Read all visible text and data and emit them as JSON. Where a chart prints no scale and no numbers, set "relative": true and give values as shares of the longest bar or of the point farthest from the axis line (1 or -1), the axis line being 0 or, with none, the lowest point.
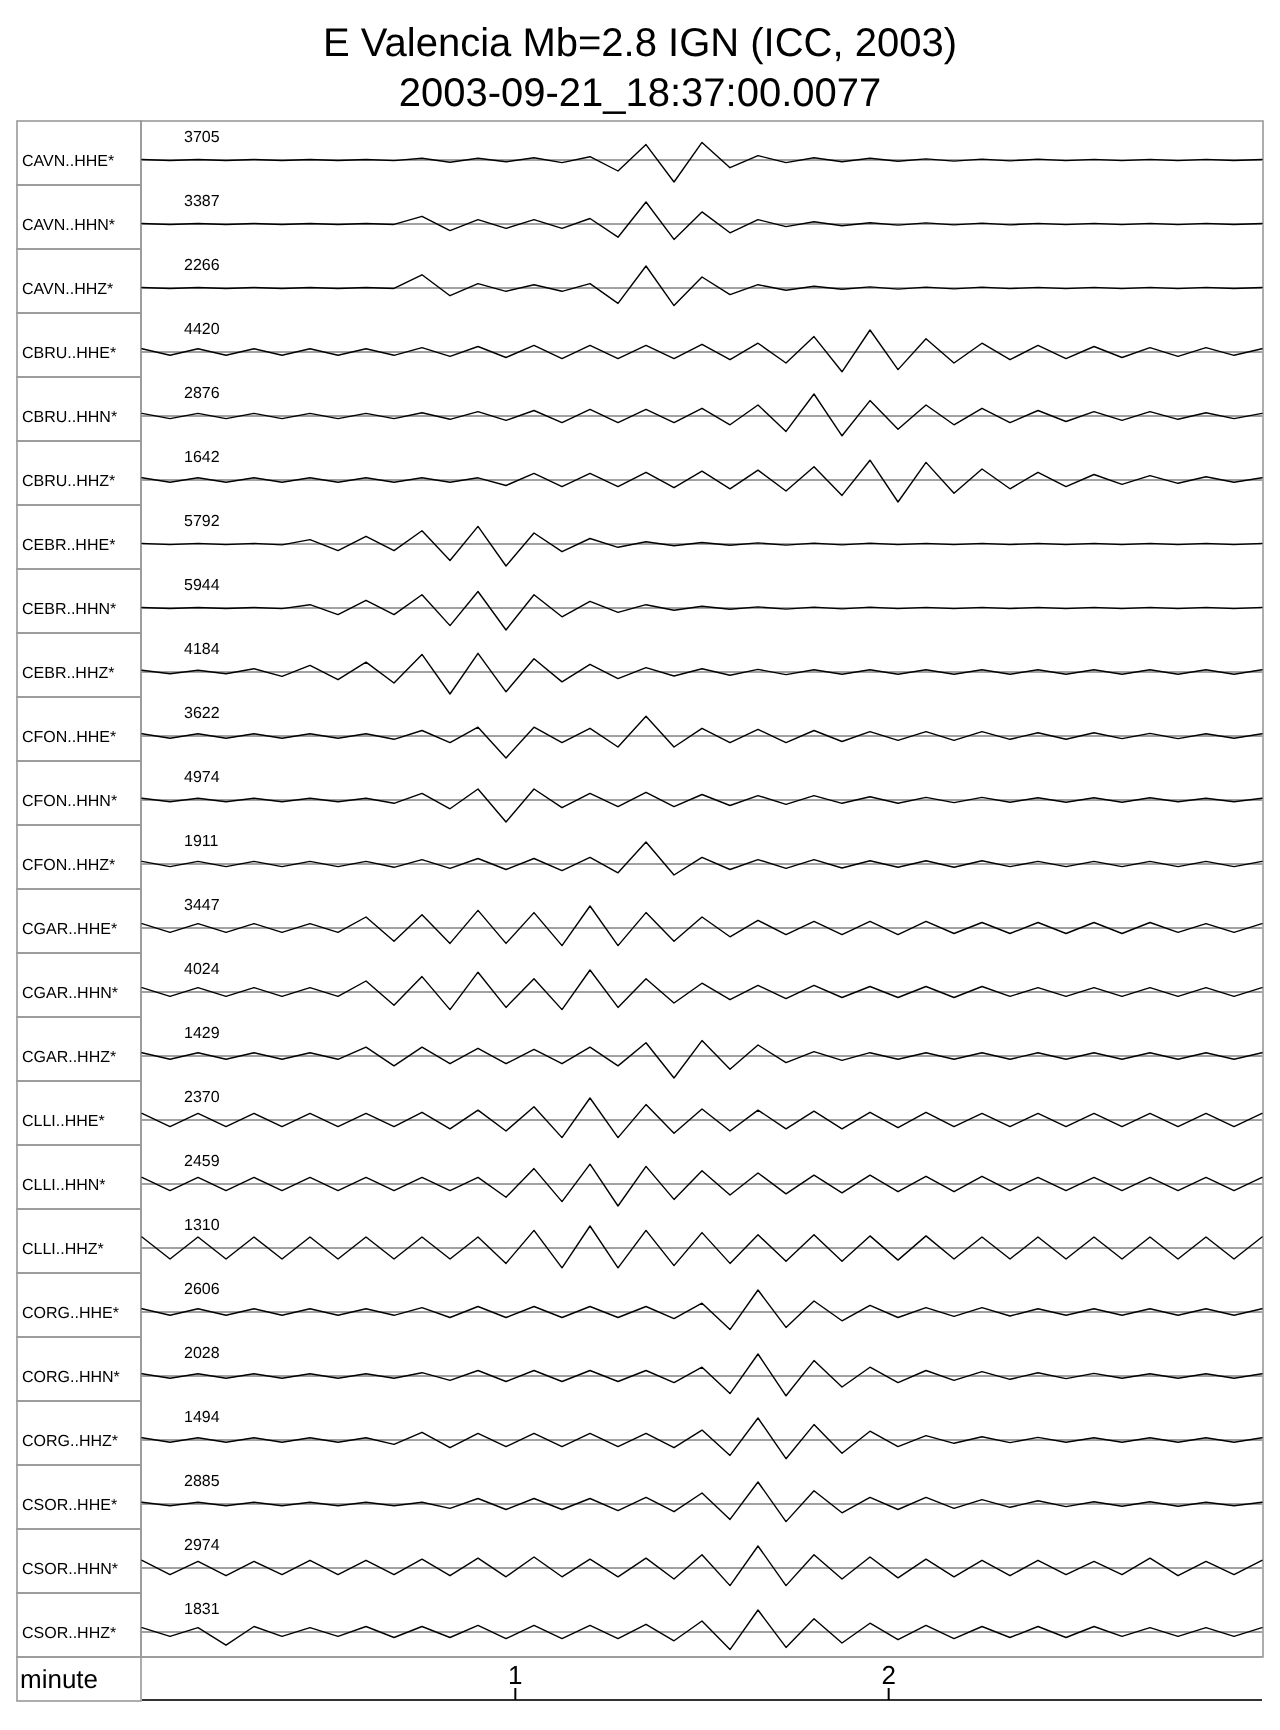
{
  "chart_data": [
    {
      "type": "line",
      "title": "E Valencia Mb=2.8 IGN (ICC, 2003)",
      "subtitle": "2003-09-21_18:37:00.0077",
      "ylabel": "CAVN..HHE*",
      "annotations": [
        "3705"
      ],
      "relative": true,
      "color": "#000000",
      "xlim": [
        0,
        3
      ],
      "tick_labels": false,
      "x": [
        0,
        0.075,
        0.15,
        0.225,
        0.3,
        0.375,
        0.45,
        0.525,
        0.6,
        0.675,
        0.75,
        0.825,
        0.9,
        0.975,
        1.05,
        1.125,
        1.2,
        1.275,
        1.35,
        1.425,
        1.5,
        1.575,
        1.65,
        1.725,
        1.8,
        1.875,
        1.95,
        2.025,
        2.1,
        2.175,
        2.25,
        2.325,
        2.4,
        2.475,
        2.55,
        2.625,
        2.7,
        2.775,
        2.85,
        2.925,
        3
      ],
      "values": [
        0.02,
        -0.02,
        0.02,
        -0.02,
        0.02,
        -0.02,
        0.02,
        -0.02,
        0.02,
        -0.03,
        0.08,
        -0.1,
        0.08,
        -0.08,
        0.1,
        -0.12,
        0.15,
        -0.5,
        0.7,
        -1,
        0.8,
        -0.35,
        0.2,
        -0.12,
        0.1,
        -0.08,
        0.08,
        -0.06,
        0.05,
        -0.05,
        0.04,
        -0.04,
        0.04,
        -0.03,
        0.03,
        -0.03,
        0.03,
        -0.03,
        0.03,
        -0.02,
        0.02
      ]
    },
    {
      "type": "line",
      "ylabel": "CAVN..HHN*",
      "annotations": [
        "3387"
      ],
      "relative": true,
      "color": "#000000",
      "xlim": [
        0,
        3
      ],
      "tick_labels": false,
      "x": [
        0,
        0.075,
        0.15,
        0.225,
        0.3,
        0.375,
        0.45,
        0.525,
        0.6,
        0.675,
        0.75,
        0.825,
        0.9,
        0.975,
        1.05,
        1.125,
        1.2,
        1.275,
        1.35,
        1.425,
        1.5,
        1.575,
        1.65,
        1.725,
        1.8,
        1.875,
        1.95,
        2.025,
        2.1,
        2.175,
        2.25,
        2.325,
        2.4,
        2.475,
        2.55,
        2.625,
        2.7,
        2.775,
        2.85,
        2.925,
        3
      ],
      "values": [
        0.02,
        -0.02,
        0.02,
        -0.02,
        0.02,
        -0.02,
        0.02,
        -0.02,
        0.02,
        -0.02,
        0.35,
        -0.3,
        0.2,
        -0.2,
        0.2,
        -0.2,
        0.25,
        -0.6,
        1,
        -0.7,
        0.55,
        -0.4,
        0.2,
        -0.12,
        0.1,
        -0.08,
        0.06,
        -0.05,
        0.05,
        -0.04,
        0.04,
        -0.04,
        0.03,
        -0.03,
        0.03,
        -0.03,
        0.03,
        -0.03,
        0.03,
        -0.02,
        0.02
      ]
    },
    {
      "type": "line",
      "ylabel": "CAVN..HHZ*",
      "annotations": [
        "2266"
      ],
      "relative": true,
      "color": "#000000",
      "xlim": [
        0,
        3
      ],
      "tick_labels": false,
      "x": [
        0,
        0.075,
        0.15,
        0.225,
        0.3,
        0.375,
        0.45,
        0.525,
        0.6,
        0.675,
        0.75,
        0.825,
        0.9,
        0.975,
        1.05,
        1.125,
        1.2,
        1.275,
        1.35,
        1.425,
        1.5,
        1.575,
        1.65,
        1.725,
        1.8,
        1.875,
        1.95,
        2.025,
        2.1,
        2.175,
        2.25,
        2.325,
        2.4,
        2.475,
        2.55,
        2.625,
        2.7,
        2.775,
        2.85,
        2.925,
        3
      ],
      "values": [
        0.02,
        -0.02,
        0.02,
        -0.02,
        0.02,
        -0.02,
        0.02,
        -0.02,
        0.02,
        -0.02,
        0.6,
        -0.35,
        0.2,
        -0.15,
        0.15,
        -0.15,
        0.2,
        -0.7,
        1,
        -0.8,
        0.5,
        -0.3,
        0.15,
        -0.1,
        0.08,
        -0.06,
        0.05,
        -0.05,
        0.04,
        -0.04,
        0.04,
        -0.03,
        0.03,
        -0.03,
        0.03,
        -0.03,
        0.03,
        -0.03,
        0.03,
        -0.02,
        0.02
      ]
    },
    {
      "type": "line",
      "ylabel": "CBRU..HHE*",
      "annotations": [
        "4420"
      ],
      "relative": true,
      "color": "#000000",
      "xlim": [
        0,
        3
      ],
      "tick_labels": false,
      "x": [
        0,
        0.075,
        0.15,
        0.225,
        0.3,
        0.375,
        0.45,
        0.525,
        0.6,
        0.675,
        0.75,
        0.825,
        0.9,
        0.975,
        1.05,
        1.125,
        1.2,
        1.275,
        1.35,
        1.425,
        1.5,
        1.575,
        1.65,
        1.725,
        1.8,
        1.875,
        1.95,
        2.025,
        2.1,
        2.175,
        2.25,
        2.325,
        2.4,
        2.475,
        2.55,
        2.625,
        2.7,
        2.775,
        2.85,
        2.925,
        3
      ],
      "values": [
        0.15,
        -0.15,
        0.15,
        -0.15,
        0.15,
        -0.15,
        0.15,
        -0.15,
        0.15,
        -0.15,
        0.2,
        -0.2,
        0.25,
        -0.25,
        0.3,
        -0.3,
        0.3,
        -0.3,
        0.3,
        -0.3,
        0.35,
        -0.35,
        0.4,
        -0.5,
        0.7,
        -0.9,
        1,
        -0.8,
        0.6,
        -0.5,
        0.4,
        -0.35,
        0.3,
        -0.3,
        0.25,
        -0.25,
        0.2,
        -0.2,
        0.2,
        -0.15,
        0.15
      ]
    },
    {
      "type": "line",
      "ylabel": "CBRU..HHN*",
      "annotations": [
        "2876"
      ],
      "relative": true,
      "color": "#000000",
      "xlim": [
        0,
        3
      ],
      "tick_labels": false,
      "x": [
        0,
        0.075,
        0.15,
        0.225,
        0.3,
        0.375,
        0.45,
        0.525,
        0.6,
        0.675,
        0.75,
        0.825,
        0.9,
        0.975,
        1.05,
        1.125,
        1.2,
        1.275,
        1.35,
        1.425,
        1.5,
        1.575,
        1.65,
        1.725,
        1.8,
        1.875,
        1.95,
        2.025,
        2.1,
        2.175,
        2.25,
        2.325,
        2.4,
        2.475,
        2.55,
        2.625,
        2.7,
        2.775,
        2.85,
        2.925,
        3
      ],
      "values": [
        0.12,
        -0.12,
        0.12,
        -0.12,
        0.12,
        -0.12,
        0.12,
        -0.12,
        0.12,
        -0.12,
        0.15,
        -0.15,
        0.2,
        -0.2,
        0.25,
        -0.3,
        0.3,
        -0.3,
        0.3,
        -0.3,
        0.35,
        -0.4,
        0.5,
        -0.7,
        1,
        -0.9,
        0.7,
        -0.6,
        0.5,
        -0.4,
        0.35,
        -0.3,
        0.25,
        -0.25,
        0.2,
        -0.2,
        0.2,
        -0.15,
        0.15,
        -0.12,
        0.12
      ]
    },
    {
      "type": "line",
      "ylabel": "CBRU..HHZ*",
      "annotations": [
        "1642"
      ],
      "relative": true,
      "color": "#000000",
      "xlim": [
        0,
        3
      ],
      "tick_labels": false,
      "x": [
        0,
        0.075,
        0.15,
        0.225,
        0.3,
        0.375,
        0.45,
        0.525,
        0.6,
        0.675,
        0.75,
        0.825,
        0.9,
        0.975,
        1.05,
        1.125,
        1.2,
        1.275,
        1.35,
        1.425,
        1.5,
        1.575,
        1.65,
        1.725,
        1.8,
        1.875,
        1.95,
        2.025,
        2.1,
        2.175,
        2.25,
        2.325,
        2.4,
        2.475,
        2.55,
        2.625,
        2.7,
        2.775,
        2.85,
        2.925,
        3
      ],
      "values": [
        0.1,
        -0.1,
        0.1,
        -0.1,
        0.1,
        -0.1,
        0.1,
        -0.1,
        0.1,
        -0.1,
        0.1,
        -0.1,
        0.1,
        -0.25,
        0.3,
        -0.3,
        0.3,
        -0.3,
        0.35,
        -0.35,
        0.4,
        -0.4,
        0.45,
        -0.5,
        0.6,
        -0.7,
        0.9,
        -1,
        0.8,
        -0.6,
        0.5,
        -0.4,
        0.35,
        -0.3,
        0.25,
        -0.2,
        0.2,
        -0.15,
        0.15,
        -0.1,
        0.1
      ]
    },
    {
      "type": "line",
      "ylabel": "CEBR..HHE*",
      "annotations": [
        "5792"
      ],
      "relative": true,
      "color": "#000000",
      "xlim": [
        0,
        3
      ],
      "tick_labels": false,
      "x": [
        0,
        0.075,
        0.15,
        0.225,
        0.3,
        0.375,
        0.45,
        0.525,
        0.6,
        0.675,
        0.75,
        0.825,
        0.9,
        0.975,
        1.05,
        1.125,
        1.2,
        1.275,
        1.35,
        1.425,
        1.5,
        1.575,
        1.65,
        1.725,
        1.8,
        1.875,
        1.95,
        2.025,
        2.1,
        2.175,
        2.25,
        2.325,
        2.4,
        2.475,
        2.55,
        2.625,
        2.7,
        2.775,
        2.85,
        2.925,
        3
      ],
      "values": [
        0.03,
        -0.03,
        0.03,
        -0.03,
        0.03,
        -0.04,
        0.2,
        -0.3,
        0.35,
        -0.3,
        0.6,
        -0.75,
        0.8,
        -1,
        0.5,
        -0.35,
        0.25,
        -0.15,
        0.1,
        -0.08,
        0.07,
        -0.06,
        0.05,
        -0.05,
        0.04,
        -0.04,
        0.04,
        -0.03,
        0.03,
        -0.03,
        0.03,
        -0.03,
        0.03,
        -0.03,
        0.03,
        -0.03,
        0.03,
        -0.03,
        0.03,
        -0.03,
        0.03
      ]
    },
    {
      "type": "line",
      "ylabel": "CEBR..HHN*",
      "annotations": [
        "5944"
      ],
      "relative": true,
      "color": "#000000",
      "xlim": [
        0,
        3
      ],
      "tick_labels": false,
      "x": [
        0,
        0.075,
        0.15,
        0.225,
        0.3,
        0.375,
        0.45,
        0.525,
        0.6,
        0.675,
        0.75,
        0.825,
        0.9,
        0.975,
        1.05,
        1.125,
        1.2,
        1.275,
        1.35,
        1.425,
        1.5,
        1.575,
        1.65,
        1.725,
        1.8,
        1.875,
        1.95,
        2.025,
        2.1,
        2.175,
        2.25,
        2.325,
        2.4,
        2.475,
        2.55,
        2.625,
        2.7,
        2.775,
        2.85,
        2.925,
        3
      ],
      "values": [
        0.02,
        -0.02,
        0.02,
        -0.02,
        0.02,
        -0.03,
        0.15,
        -0.3,
        0.35,
        -0.3,
        0.6,
        -0.8,
        0.75,
        -1,
        0.6,
        -0.4,
        0.3,
        -0.2,
        0.15,
        -0.1,
        0.08,
        -0.06,
        0.05,
        -0.05,
        0.04,
        -0.04,
        0.04,
        -0.03,
        0.03,
        -0.03,
        0.03,
        -0.03,
        0.03,
        -0.03,
        0.03,
        -0.03,
        0.03,
        -0.03,
        0.03,
        -0.03,
        0.03
      ]
    },
    {
      "type": "line",
      "ylabel": "CEBR..HHZ*",
      "annotations": [
        "4184"
      ],
      "relative": true,
      "color": "#000000",
      "xlim": [
        0,
        3
      ],
      "tick_labels": false,
      "x": [
        0,
        0.075,
        0.15,
        0.225,
        0.3,
        0.375,
        0.45,
        0.525,
        0.6,
        0.675,
        0.75,
        0.825,
        0.9,
        0.975,
        1.05,
        1.125,
        1.2,
        1.275,
        1.35,
        1.425,
        1.5,
        1.575,
        1.65,
        1.725,
        1.8,
        1.875,
        1.95,
        2.025,
        2.1,
        2.175,
        2.25,
        2.325,
        2.4,
        2.475,
        2.55,
        2.625,
        2.7,
        2.775,
        2.85,
        2.925,
        3
      ],
      "values": [
        0.08,
        -0.08,
        0.08,
        -0.08,
        0.15,
        -0.2,
        0.3,
        -0.35,
        0.45,
        -0.5,
        0.8,
        -1,
        0.85,
        -0.9,
        0.6,
        -0.45,
        0.35,
        -0.3,
        0.2,
        -0.18,
        0.15,
        -0.15,
        0.12,
        -0.12,
        0.1,
        -0.1,
        0.1,
        -0.1,
        0.1,
        -0.1,
        0.1,
        -0.1,
        0.1,
        -0.1,
        0.1,
        -0.1,
        0.1,
        -0.1,
        0.1,
        -0.1,
        0.1
      ]
    },
    {
      "type": "line",
      "ylabel": "CFON..HHE*",
      "annotations": [
        "3622"
      ],
      "relative": true,
      "color": "#000000",
      "xlim": [
        0,
        3
      ],
      "tick_labels": false,
      "x": [
        0,
        0.075,
        0.15,
        0.225,
        0.3,
        0.375,
        0.45,
        0.525,
        0.6,
        0.675,
        0.75,
        0.825,
        0.9,
        0.975,
        1.05,
        1.125,
        1.2,
        1.275,
        1.35,
        1.425,
        1.5,
        1.575,
        1.65,
        1.725,
        1.8,
        1.875,
        1.95,
        2.025,
        2.1,
        2.175,
        2.25,
        2.325,
        2.4,
        2.475,
        2.55,
        2.625,
        2.7,
        2.775,
        2.85,
        2.925,
        3
      ],
      "values": [
        0.1,
        -0.1,
        0.1,
        -0.1,
        0.1,
        -0.1,
        0.1,
        -0.1,
        0.1,
        -0.15,
        0.25,
        -0.3,
        0.4,
        -1,
        0.4,
        -0.3,
        0.35,
        -0.5,
        0.9,
        -0.5,
        0.35,
        -0.3,
        0.3,
        -0.3,
        0.25,
        -0.25,
        0.2,
        -0.2,
        0.2,
        -0.2,
        0.2,
        -0.15,
        0.15,
        -0.15,
        0.15,
        -0.12,
        0.12,
        -0.12,
        0.1,
        -0.1,
        0.1
      ]
    },
    {
      "type": "line",
      "ylabel": "CFON..HHN*",
      "annotations": [
        "4974"
      ],
      "relative": true,
      "color": "#000000",
      "xlim": [
        0,
        3
      ],
      "tick_labels": false,
      "x": [
        0,
        0.075,
        0.15,
        0.225,
        0.3,
        0.375,
        0.45,
        0.525,
        0.6,
        0.675,
        0.75,
        0.825,
        0.9,
        0.975,
        1.05,
        1.125,
        1.2,
        1.275,
        1.35,
        1.425,
        1.5,
        1.575,
        1.65,
        1.725,
        1.8,
        1.875,
        1.95,
        2.025,
        2.1,
        2.175,
        2.25,
        2.325,
        2.4,
        2.475,
        2.55,
        2.625,
        2.7,
        2.775,
        2.85,
        2.925,
        3
      ],
      "values": [
        0.08,
        -0.08,
        0.08,
        -0.08,
        0.08,
        -0.08,
        0.08,
        -0.08,
        0.08,
        -0.15,
        0.3,
        -0.4,
        0.5,
        -1,
        0.5,
        -0.35,
        0.3,
        -0.3,
        0.35,
        -0.3,
        0.25,
        -0.25,
        0.2,
        -0.2,
        0.2,
        -0.15,
        0.15,
        -0.15,
        0.12,
        -0.12,
        0.12,
        -0.1,
        0.1,
        -0.1,
        0.1,
        -0.1,
        0.1,
        -0.08,
        0.08,
        -0.08,
        0.08
      ]
    },
    {
      "type": "line",
      "ylabel": "CFON..HHZ*",
      "annotations": [
        "1911"
      ],
      "relative": true,
      "color": "#000000",
      "xlim": [
        0,
        3
      ],
      "tick_labels": false,
      "x": [
        0,
        0.075,
        0.15,
        0.225,
        0.3,
        0.375,
        0.45,
        0.525,
        0.6,
        0.675,
        0.75,
        0.825,
        0.9,
        0.975,
        1.05,
        1.125,
        1.2,
        1.275,
        1.35,
        1.425,
        1.5,
        1.575,
        1.65,
        1.725,
        1.8,
        1.875,
        1.95,
        2.025,
        2.1,
        2.175,
        2.25,
        2.325,
        2.4,
        2.475,
        2.55,
        2.625,
        2.7,
        2.775,
        2.85,
        2.925,
        3
      ],
      "values": [
        0.12,
        -0.12,
        0.12,
        -0.12,
        0.12,
        -0.12,
        0.12,
        -0.12,
        0.12,
        -0.15,
        0.2,
        -0.2,
        0.25,
        -0.25,
        0.25,
        -0.3,
        0.3,
        -0.4,
        1,
        -0.5,
        0.3,
        -0.25,
        0.2,
        -0.2,
        0.2,
        -0.18,
        0.15,
        -0.15,
        0.15,
        -0.15,
        0.15,
        -0.12,
        0.12,
        -0.12,
        0.12,
        -0.12,
        0.12,
        -0.12,
        0.12,
        -0.12,
        0.12
      ]
    },
    {
      "type": "line",
      "ylabel": "CGAR..HHE*",
      "annotations": [
        "3447"
      ],
      "relative": true,
      "color": "#000000",
      "xlim": [
        0,
        3
      ],
      "tick_labels": false,
      "x": [
        0,
        0.075,
        0.15,
        0.225,
        0.3,
        0.375,
        0.45,
        0.525,
        0.6,
        0.675,
        0.75,
        0.825,
        0.9,
        0.975,
        1.05,
        1.125,
        1.2,
        1.275,
        1.35,
        1.425,
        1.5,
        1.575,
        1.65,
        1.725,
        1.8,
        1.875,
        1.95,
        2.025,
        2.1,
        2.175,
        2.25,
        2.325,
        2.4,
        2.475,
        2.55,
        2.625,
        2.7,
        2.775,
        2.85,
        2.925,
        3
      ],
      "values": [
        0.2,
        -0.2,
        0.2,
        -0.2,
        0.2,
        -0.2,
        0.2,
        -0.2,
        0.5,
        -0.6,
        0.6,
        -0.7,
        0.8,
        -0.7,
        0.7,
        -0.8,
        1,
        -0.8,
        0.7,
        -0.6,
        0.5,
        -0.4,
        0.35,
        -0.3,
        0.3,
        -0.3,
        0.3,
        -0.3,
        0.3,
        -0.25,
        0.25,
        -0.25,
        0.25,
        -0.25,
        0.25,
        -0.25,
        0.25,
        -0.2,
        0.2,
        -0.2,
        0.2
      ]
    },
    {
      "type": "line",
      "ylabel": "CGAR..HHN*",
      "annotations": [
        "4024"
      ],
      "relative": true,
      "color": "#000000",
      "xlim": [
        0,
        3
      ],
      "tick_labels": false,
      "x": [
        0,
        0.075,
        0.15,
        0.225,
        0.3,
        0.375,
        0.45,
        0.525,
        0.6,
        0.675,
        0.75,
        0.825,
        0.9,
        0.975,
        1.05,
        1.125,
        1.2,
        1.275,
        1.35,
        1.425,
        1.5,
        1.575,
        1.65,
        1.725,
        1.8,
        1.875,
        1.95,
        2.025,
        2.1,
        2.175,
        2.25,
        2.325,
        2.4,
        2.475,
        2.55,
        2.625,
        2.7,
        2.775,
        2.85,
        2.925,
        3
      ],
      "values": [
        0.2,
        -0.2,
        0.2,
        -0.2,
        0.2,
        -0.2,
        0.2,
        -0.2,
        0.5,
        -0.6,
        0.7,
        -0.8,
        0.9,
        -0.7,
        0.6,
        -0.8,
        1,
        -0.7,
        0.6,
        -0.5,
        0.4,
        -0.35,
        0.3,
        -0.3,
        0.3,
        -0.25,
        0.25,
        -0.25,
        0.25,
        -0.25,
        0.25,
        -0.2,
        0.2,
        -0.2,
        0.2,
        -0.2,
        0.2,
        -0.2,
        0.2,
        -0.2,
        0.2
      ]
    },
    {
      "type": "line",
      "ylabel": "CGAR..HHZ*",
      "annotations": [
        "1429"
      ],
      "relative": true,
      "color": "#000000",
      "xlim": [
        0,
        3
      ],
      "tick_labels": false,
      "x": [
        0,
        0.075,
        0.15,
        0.225,
        0.3,
        0.375,
        0.45,
        0.525,
        0.6,
        0.675,
        0.75,
        0.825,
        0.9,
        0.975,
        1.05,
        1.125,
        1.2,
        1.275,
        1.35,
        1.425,
        1.5,
        1.575,
        1.65,
        1.725,
        1.8,
        1.875,
        1.95,
        2.025,
        2.1,
        2.175,
        2.25,
        2.325,
        2.4,
        2.475,
        2.55,
        2.625,
        2.7,
        2.775,
        2.85,
        2.925,
        3
      ],
      "values": [
        0.15,
        -0.15,
        0.15,
        -0.15,
        0.15,
        -0.15,
        0.15,
        -0.15,
        0.4,
        -0.45,
        0.4,
        -0.35,
        0.35,
        -0.35,
        0.3,
        -0.35,
        0.4,
        -0.45,
        0.6,
        -1,
        0.7,
        -0.6,
        0.5,
        -0.3,
        0.2,
        -0.2,
        0.15,
        -0.15,
        0.15,
        -0.15,
        0.15,
        -0.15,
        0.15,
        -0.15,
        0.15,
        -0.15,
        0.15,
        -0.15,
        0.15,
        -0.15,
        0.15
      ]
    },
    {
      "type": "line",
      "ylabel": "CLLI..HHE*",
      "annotations": [
        "2370"
      ],
      "relative": true,
      "color": "#000000",
      "xlim": [
        0,
        3
      ],
      "tick_labels": false,
      "x": [
        0,
        0.075,
        0.15,
        0.225,
        0.3,
        0.375,
        0.45,
        0.525,
        0.6,
        0.675,
        0.75,
        0.825,
        0.9,
        0.975,
        1.05,
        1.125,
        1.2,
        1.275,
        1.35,
        1.425,
        1.5,
        1.575,
        1.65,
        1.725,
        1.8,
        1.875,
        1.95,
        2.025,
        2.1,
        2.175,
        2.25,
        2.325,
        2.4,
        2.475,
        2.55,
        2.625,
        2.7,
        2.775,
        2.85,
        2.925,
        3
      ],
      "values": [
        0.3,
        -0.3,
        0.3,
        -0.3,
        0.3,
        -0.3,
        0.3,
        -0.3,
        0.3,
        -0.3,
        0.35,
        -0.4,
        0.45,
        -0.5,
        0.6,
        -0.8,
        1,
        -0.8,
        0.7,
        -0.6,
        0.5,
        -0.5,
        0.45,
        -0.4,
        0.4,
        -0.4,
        0.35,
        -0.35,
        0.35,
        -0.3,
        0.3,
        -0.3,
        0.3,
        -0.3,
        0.3,
        -0.3,
        0.3,
        -0.3,
        0.3,
        -0.3,
        0.3
      ]
    },
    {
      "type": "line",
      "ylabel": "CLLI..HHN*",
      "annotations": [
        "2459"
      ],
      "relative": true,
      "color": "#000000",
      "xlim": [
        0,
        3
      ],
      "tick_labels": false,
      "x": [
        0,
        0.075,
        0.15,
        0.225,
        0.3,
        0.375,
        0.45,
        0.525,
        0.6,
        0.675,
        0.75,
        0.825,
        0.9,
        0.975,
        1.05,
        1.125,
        1.2,
        1.275,
        1.35,
        1.425,
        1.5,
        1.575,
        1.65,
        1.725,
        1.8,
        1.875,
        1.95,
        2.025,
        2.1,
        2.175,
        2.25,
        2.325,
        2.4,
        2.475,
        2.55,
        2.625,
        2.7,
        2.775,
        2.85,
        2.925,
        3
      ],
      "values": [
        0.3,
        -0.3,
        0.3,
        -0.3,
        0.3,
        -0.3,
        0.3,
        -0.3,
        0.3,
        -0.3,
        0.3,
        -0.3,
        0.3,
        -0.6,
        0.7,
        -0.8,
        0.9,
        -1,
        0.8,
        -0.7,
        0.6,
        -0.5,
        0.5,
        -0.45,
        0.4,
        -0.4,
        0.4,
        -0.35,
        0.35,
        -0.35,
        0.35,
        -0.3,
        0.3,
        -0.3,
        0.3,
        -0.3,
        0.3,
        -0.3,
        0.3,
        -0.3,
        0.3
      ]
    },
    {
      "type": "line",
      "ylabel": "CLLI..HHZ*",
      "annotations": [
        "1310"
      ],
      "relative": true,
      "color": "#000000",
      "xlim": [
        0,
        3
      ],
      "tick_labels": false,
      "x": [
        0,
        0.075,
        0.15,
        0.225,
        0.3,
        0.375,
        0.45,
        0.525,
        0.6,
        0.675,
        0.75,
        0.825,
        0.9,
        0.975,
        1.05,
        1.125,
        1.2,
        1.275,
        1.35,
        1.425,
        1.5,
        1.575,
        1.65,
        1.725,
        1.8,
        1.875,
        1.95,
        2.025,
        2.1,
        2.175,
        2.25,
        2.325,
        2.4,
        2.475,
        2.55,
        2.625,
        2.7,
        2.775,
        2.85,
        2.925,
        3
      ],
      "values": [
        0.5,
        -0.5,
        0.5,
        -0.5,
        0.5,
        -0.5,
        0.5,
        -0.5,
        0.5,
        -0.5,
        0.5,
        -0.5,
        0.5,
        -0.7,
        0.8,
        -0.9,
        1,
        -0.9,
        0.8,
        -0.8,
        0.7,
        -0.7,
        0.6,
        -0.6,
        0.6,
        -0.6,
        0.55,
        -0.55,
        0.55,
        -0.5,
        0.5,
        -0.5,
        0.5,
        -0.5,
        0.5,
        -0.5,
        0.5,
        -0.5,
        0.5,
        -0.5,
        0.5
      ]
    },
    {
      "type": "line",
      "ylabel": "CORG..HHE*",
      "annotations": [
        "2606"
      ],
      "relative": true,
      "color": "#000000",
      "xlim": [
        0,
        3
      ],
      "tick_labels": false,
      "x": [
        0,
        0.075,
        0.15,
        0.225,
        0.3,
        0.375,
        0.45,
        0.525,
        0.6,
        0.675,
        0.75,
        0.825,
        0.9,
        0.975,
        1.05,
        1.125,
        1.2,
        1.275,
        1.35,
        1.425,
        1.5,
        1.575,
        1.65,
        1.725,
        1.8,
        1.875,
        1.95,
        2.025,
        2.1,
        2.175,
        2.25,
        2.325,
        2.4,
        2.475,
        2.55,
        2.625,
        2.7,
        2.775,
        2.85,
        2.925,
        3
      ],
      "values": [
        0.15,
        -0.15,
        0.15,
        -0.15,
        0.15,
        -0.15,
        0.15,
        -0.15,
        0.15,
        -0.15,
        0.2,
        -0.25,
        0.25,
        -0.25,
        0.25,
        -0.25,
        0.25,
        -0.25,
        0.25,
        -0.3,
        0.4,
        -0.8,
        1,
        -0.7,
        0.5,
        -0.4,
        0.3,
        -0.25,
        0.2,
        -0.2,
        0.2,
        -0.18,
        0.15,
        -0.15,
        0.15,
        -0.15,
        0.15,
        -0.15,
        0.15,
        -0.15,
        0.15
      ]
    },
    {
      "type": "line",
      "ylabel": "CORG..HHN*",
      "annotations": [
        "2028"
      ],
      "relative": true,
      "color": "#000000",
      "xlim": [
        0,
        3
      ],
      "tick_labels": false,
      "x": [
        0,
        0.075,
        0.15,
        0.225,
        0.3,
        0.375,
        0.45,
        0.525,
        0.6,
        0.675,
        0.75,
        0.825,
        0.9,
        0.975,
        1.05,
        1.125,
        1.2,
        1.275,
        1.35,
        1.425,
        1.5,
        1.575,
        1.65,
        1.725,
        1.8,
        1.875,
        1.95,
        2.025,
        2.1,
        2.175,
        2.25,
        2.325,
        2.4,
        2.475,
        2.55,
        2.625,
        2.7,
        2.775,
        2.85,
        2.925,
        3
      ],
      "values": [
        0.1,
        -0.1,
        0.1,
        -0.1,
        0.1,
        -0.1,
        0.1,
        -0.1,
        0.1,
        -0.1,
        0.15,
        -0.2,
        0.25,
        -0.25,
        0.25,
        -0.25,
        0.25,
        -0.25,
        0.25,
        -0.3,
        0.4,
        -0.8,
        1,
        -0.9,
        0.7,
        -0.5,
        0.4,
        -0.3,
        0.25,
        -0.2,
        0.2,
        -0.15,
        0.15,
        -0.12,
        0.12,
        -0.1,
        0.1,
        -0.1,
        0.1,
        -0.1,
        0.1
      ]
    },
    {
      "type": "line",
      "ylabel": "CORG..HHZ*",
      "annotations": [
        "1494"
      ],
      "relative": true,
      "color": "#000000",
      "xlim": [
        0,
        3
      ],
      "tick_labels": false,
      "x": [
        0,
        0.075,
        0.15,
        0.225,
        0.3,
        0.375,
        0.45,
        0.525,
        0.6,
        0.675,
        0.75,
        0.825,
        0.9,
        0.975,
        1.05,
        1.125,
        1.2,
        1.275,
        1.35,
        1.425,
        1.5,
        1.575,
        1.65,
        1.725,
        1.8,
        1.875,
        1.95,
        2.025,
        2.1,
        2.175,
        2.25,
        2.325,
        2.4,
        2.475,
        2.55,
        2.625,
        2.7,
        2.775,
        2.85,
        2.925,
        3
      ],
      "values": [
        0.1,
        -0.1,
        0.1,
        -0.1,
        0.1,
        -0.1,
        0.1,
        -0.1,
        0.1,
        -0.2,
        0.35,
        -0.35,
        0.3,
        -0.3,
        0.3,
        -0.3,
        0.3,
        -0.3,
        0.3,
        -0.35,
        0.45,
        -0.7,
        1,
        -0.85,
        0.7,
        -0.6,
        0.4,
        -0.3,
        0.2,
        -0.15,
        0.15,
        -0.12,
        0.12,
        -0.1,
        0.1,
        -0.1,
        0.1,
        -0.1,
        0.1,
        -0.1,
        0.1
      ]
    },
    {
      "type": "line",
      "ylabel": "CSOR..HHE*",
      "annotations": [
        "2885"
      ],
      "relative": true,
      "color": "#000000",
      "xlim": [
        0,
        3
      ],
      "tick_labels": false,
      "x": [
        0,
        0.075,
        0.15,
        0.225,
        0.3,
        0.375,
        0.45,
        0.525,
        0.6,
        0.675,
        0.75,
        0.825,
        0.9,
        0.975,
        1.05,
        1.125,
        1.2,
        1.275,
        1.35,
        1.425,
        1.5,
        1.575,
        1.65,
        1.725,
        1.8,
        1.875,
        1.95,
        2.025,
        2.1,
        2.175,
        2.25,
        2.325,
        2.4,
        2.475,
        2.55,
        2.625,
        2.7,
        2.775,
        2.85,
        2.925,
        3
      ],
      "values": [
        0.08,
        -0.08,
        0.08,
        -0.08,
        0.08,
        -0.08,
        0.08,
        -0.08,
        0.08,
        -0.08,
        0.08,
        -0.2,
        0.25,
        -0.25,
        0.25,
        -0.25,
        0.25,
        -0.3,
        0.3,
        -0.35,
        0.5,
        -0.7,
        1,
        -0.8,
        0.6,
        -0.4,
        0.3,
        -0.25,
        0.3,
        -0.2,
        0.2,
        -0.15,
        0.15,
        -0.12,
        0.1,
        -0.1,
        0.1,
        -0.1,
        0.08,
        -0.08,
        0.08
      ]
    },
    {
      "type": "line",
      "ylabel": "CSOR..HHN*",
      "annotations": [
        "2974"
      ],
      "relative": true,
      "color": "#000000",
      "xlim": [
        0,
        3
      ],
      "tick_labels": false,
      "x": [
        0,
        0.075,
        0.15,
        0.225,
        0.3,
        0.375,
        0.45,
        0.525,
        0.6,
        0.675,
        0.75,
        0.825,
        0.9,
        0.975,
        1.05,
        1.125,
        1.2,
        1.275,
        1.35,
        1.425,
        1.5,
        1.575,
        1.65,
        1.725,
        1.8,
        1.875,
        1.95,
        2.025,
        2.1,
        2.175,
        2.25,
        2.325,
        2.4,
        2.475,
        2.55,
        2.625,
        2.7,
        2.775,
        2.85,
        2.925,
        3
      ],
      "values": [
        0.35,
        -0.3,
        0.3,
        -0.35,
        0.3,
        -0.3,
        0.35,
        -0.3,
        0.35,
        -0.3,
        0.4,
        -0.35,
        0.45,
        -0.4,
        0.5,
        -0.4,
        0.4,
        -0.4,
        0.45,
        -0.5,
        0.6,
        -0.8,
        1,
        -0.8,
        0.6,
        -0.5,
        0.5,
        -0.45,
        0.4,
        -0.4,
        0.35,
        -0.35,
        0.35,
        -0.3,
        0.3,
        -0.3,
        0.45,
        -0.35,
        0.3,
        -0.3,
        0.35
      ]
    },
    {
      "type": "line",
      "ylabel": "CSOR..HHZ*",
      "annotations": [
        "1831"
      ],
      "xlabel": "minute",
      "relative": true,
      "color": "#000000",
      "xlim": [
        0,
        3
      ],
      "tick_labels": "x",
      "xticks": [
        1,
        2
      ],
      "x": [
        0,
        0.075,
        0.15,
        0.225,
        0.3,
        0.375,
        0.45,
        0.525,
        0.6,
        0.675,
        0.75,
        0.825,
        0.9,
        0.975,
        1.05,
        1.125,
        1.2,
        1.275,
        1.35,
        1.425,
        1.5,
        1.575,
        1.65,
        1.725,
        1.8,
        1.875,
        1.95,
        2.025,
        2.1,
        2.175,
        2.25,
        2.325,
        2.4,
        2.475,
        2.55,
        2.625,
        2.7,
        2.775,
        2.85,
        2.925,
        3
      ],
      "values": [
        0.2,
        -0.2,
        0.2,
        -0.6,
        0.25,
        -0.2,
        0.2,
        -0.2,
        0.25,
        -0.25,
        0.25,
        -0.25,
        0.3,
        -0.3,
        0.3,
        -0.3,
        0.3,
        -0.3,
        0.35,
        -0.4,
        0.5,
        -0.8,
        1,
        -0.7,
        0.6,
        -0.5,
        0.4,
        -0.35,
        0.3,
        -0.3,
        0.25,
        -0.25,
        0.25,
        -0.25,
        0.25,
        -0.2,
        0.2,
        -0.2,
        0.2,
        -0.2,
        0.2
      ]
    }
  ]
}
